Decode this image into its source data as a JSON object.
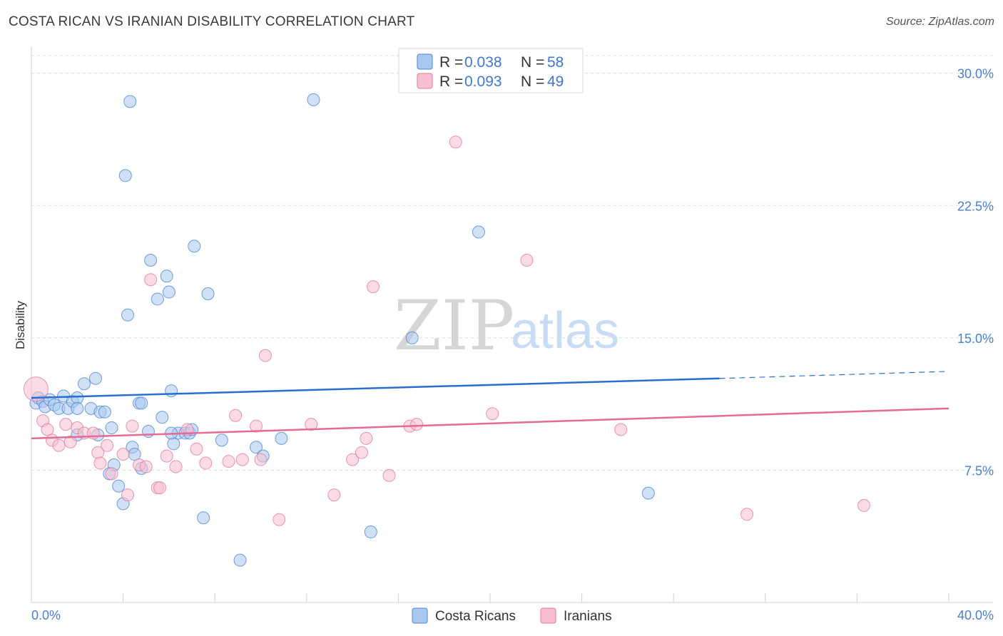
{
  "title": "COSTA RICAN VS IRANIAN DISABILITY CORRELATION CHART",
  "source": "Source: ZipAtlas.com",
  "watermark": {
    "zip": "ZIP",
    "atlas": "atlas"
  },
  "chart_data": {
    "type": "scatter",
    "ylabel": "Disability",
    "xlim": [
      0,
      40
    ],
    "ylim": [
      0,
      31
    ],
    "x_tick_labels": [
      "0.0%",
      "40.0%"
    ],
    "y_ticks": [
      7.5,
      15.0,
      22.5,
      30.0
    ],
    "y_tick_labels": [
      "7.5%",
      "15.0%",
      "22.5%",
      "30.0%"
    ],
    "legend_top": [
      {
        "r_label": "R =",
        "r_value": "0.038",
        "n_label": "N =",
        "n_value": "58"
      },
      {
        "r_label": "R =",
        "r_value": "0.093",
        "n_label": "N =",
        "n_value": "49"
      }
    ],
    "series": [
      {
        "name": "Costa Ricans",
        "fill": "#a9c8f0",
        "stroke": "#4f86d6",
        "line_color": "#2a6fcf",
        "trend": {
          "x0": 0,
          "y0": 11.6,
          "x1": 30,
          "y1": 12.7,
          "dash_x1": 40,
          "dash_y1": 13.1
        },
        "points": [
          [
            0.2,
            11.3
          ],
          [
            0.3,
            11.6
          ],
          [
            0.5,
            11.4
          ],
          [
            0.6,
            11.1
          ],
          [
            0.8,
            11.5
          ],
          [
            1.0,
            11.2
          ],
          [
            1.2,
            11.0
          ],
          [
            1.4,
            11.7
          ],
          [
            1.6,
            11.0
          ],
          [
            1.8,
            11.4
          ],
          [
            2.0,
            11.6
          ],
          [
            2.3,
            12.4
          ],
          [
            2.6,
            11.0
          ],
          [
            2.8,
            12.7
          ],
          [
            3.0,
            10.8
          ],
          [
            2.0,
            11.0
          ],
          [
            3.2,
            10.8
          ],
          [
            3.5,
            9.9
          ],
          [
            3.6,
            7.8
          ],
          [
            3.8,
            6.6
          ],
          [
            4.0,
            5.6
          ],
          [
            3.4,
            7.3
          ],
          [
            2.9,
            9.5
          ],
          [
            2.0,
            9.5
          ],
          [
            4.2,
            16.3
          ],
          [
            4.4,
            8.8
          ],
          [
            4.5,
            8.4
          ],
          [
            4.7,
            11.3
          ],
          [
            4.8,
            11.3
          ],
          [
            5.1,
            9.7
          ],
          [
            5.2,
            19.4
          ],
          [
            5.5,
            17.2
          ],
          [
            5.7,
            10.5
          ],
          [
            5.9,
            18.5
          ],
          [
            6.0,
            17.6
          ],
          [
            6.2,
            9.0
          ],
          [
            6.4,
            9.6
          ],
          [
            6.7,
            9.6
          ],
          [
            6.9,
            9.6
          ],
          [
            7.0,
            9.8
          ],
          [
            7.1,
            20.2
          ],
          [
            7.5,
            4.8
          ],
          [
            7.7,
            17.5
          ],
          [
            8.3,
            9.2
          ],
          [
            9.1,
            2.4
          ],
          [
            9.8,
            8.8
          ],
          [
            10.1,
            8.3
          ],
          [
            10.9,
            9.3
          ],
          [
            4.1,
            24.2
          ],
          [
            4.3,
            28.4
          ],
          [
            12.3,
            28.5
          ],
          [
            14.8,
            4.0
          ],
          [
            16.6,
            15.0
          ],
          [
            19.5,
            21.0
          ],
          [
            26.9,
            6.2
          ],
          [
            6.1,
            9.6
          ],
          [
            6.1,
            12.0
          ],
          [
            4.8,
            7.6
          ]
        ]
      },
      {
        "name": "Iranians",
        "fill": "#f7bfd0",
        "stroke": "#e27ba0",
        "line_color": "#e56b95",
        "trend": {
          "x0": 0,
          "y0": 9.3,
          "x1": 40,
          "y1": 11.0
        },
        "points": [
          [
            0.2,
            12.1
          ],
          [
            0.5,
            10.3
          ],
          [
            0.7,
            9.8
          ],
          [
            0.9,
            9.2
          ],
          [
            1.2,
            8.9
          ],
          [
            1.5,
            10.1
          ],
          [
            1.7,
            9.1
          ],
          [
            2.0,
            9.9
          ],
          [
            2.3,
            9.6
          ],
          [
            2.7,
            9.6
          ],
          [
            2.9,
            8.5
          ],
          [
            3.0,
            7.9
          ],
          [
            3.3,
            8.9
          ],
          [
            3.5,
            7.3
          ],
          [
            4.0,
            8.4
          ],
          [
            4.2,
            6.1
          ],
          [
            4.4,
            10.0
          ],
          [
            4.7,
            7.8
          ],
          [
            5.0,
            7.7
          ],
          [
            5.2,
            18.3
          ],
          [
            5.5,
            6.5
          ],
          [
            5.6,
            6.5
          ],
          [
            5.9,
            8.3
          ],
          [
            6.3,
            7.7
          ],
          [
            6.8,
            9.8
          ],
          [
            7.2,
            8.7
          ],
          [
            7.6,
            7.9
          ],
          [
            8.6,
            8.0
          ],
          [
            8.9,
            10.6
          ],
          [
            9.2,
            8.1
          ],
          [
            9.8,
            10.0
          ],
          [
            10.0,
            8.1
          ],
          [
            10.2,
            14.0
          ],
          [
            10.8,
            4.7
          ],
          [
            12.2,
            10.1
          ],
          [
            13.2,
            6.1
          ],
          [
            14.0,
            8.1
          ],
          [
            14.4,
            8.5
          ],
          [
            14.6,
            9.3
          ],
          [
            14.9,
            17.9
          ],
          [
            15.6,
            7.2
          ],
          [
            16.5,
            10.0
          ],
          [
            16.8,
            10.1
          ],
          [
            18.5,
            26.1
          ],
          [
            20.1,
            10.7
          ],
          [
            21.6,
            19.4
          ],
          [
            25.7,
            9.8
          ],
          [
            31.2,
            5.0
          ],
          [
            36.3,
            5.5
          ]
        ]
      }
    ]
  }
}
